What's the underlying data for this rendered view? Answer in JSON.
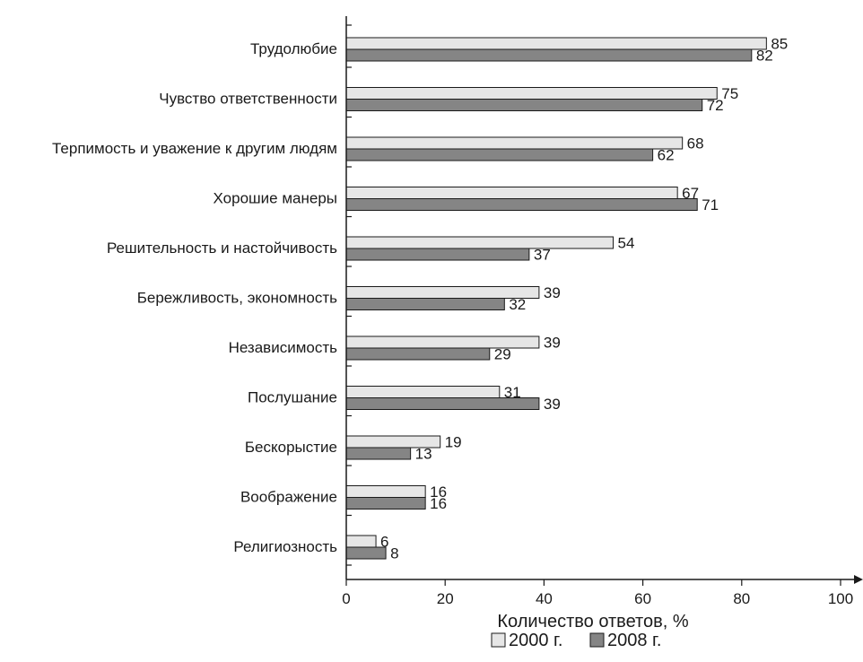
{
  "chart_data": {
    "type": "bar",
    "orientation": "horizontal",
    "categories": [
      "Трудолюбие",
      "Чувство ответственности",
      "Терпимость и уважение к другим людям",
      "Хорошие манеры",
      "Решительность и настойчивость",
      "Бережливость, экономность",
      "Независимость",
      "Послушание",
      "Бескорыстие",
      "Воображение",
      "Религиозность"
    ],
    "series": [
      {
        "name": "2000 г.",
        "color": "#e6e6e6",
        "values": [
          85,
          75,
          68,
          67,
          54,
          39,
          39,
          31,
          19,
          16,
          6
        ]
      },
      {
        "name": "2008 г.",
        "color": "#858585",
        "values": [
          82,
          72,
          62,
          71,
          37,
          32,
          29,
          39,
          13,
          16,
          8
        ]
      }
    ],
    "xlabel": "Количество ответов, %",
    "xlim": [
      0,
      100
    ],
    "xticks": [
      0,
      20,
      40,
      60,
      80,
      100
    ],
    "legend_position": "bottom"
  }
}
